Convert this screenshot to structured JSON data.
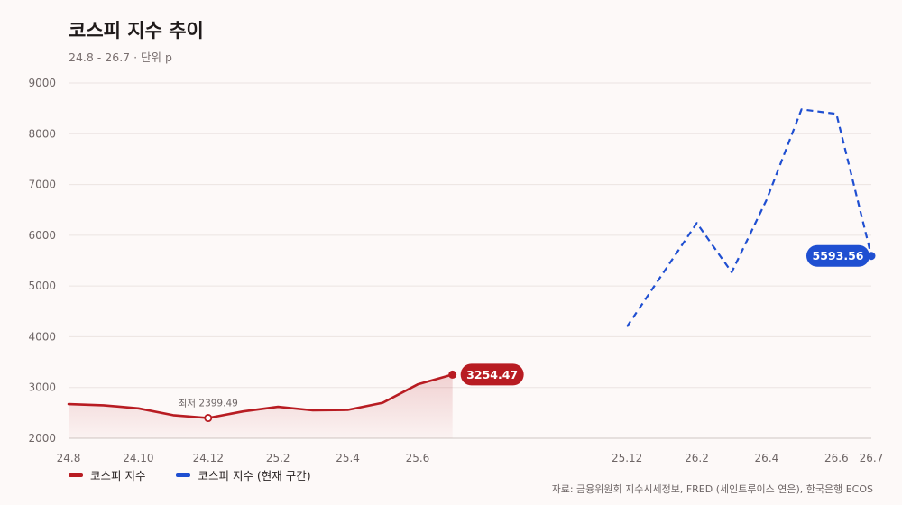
{
  "title": "코스피 지수 추이",
  "subtitle": "24.8 - 26.7 · 단위 p",
  "source": "자료: 금융위원회 지수시세정보, FRED (세인트루이스 연은), 한국은행 ECOS",
  "colors": {
    "series1": "#b81c22",
    "series2": "#1f4fd1",
    "grid": "#ebe4e2",
    "axis": "#cfc6c4"
  },
  "chart_data": {
    "type": "line",
    "title": "코스피 지수 추이",
    "subtitle": "24.8 - 26.7 · 단위 p",
    "ylim": [
      2000,
      9000
    ],
    "yticks": [
      "2000",
      "3000",
      "4000",
      "5000",
      "6000",
      "7000",
      "8000",
      "9000"
    ],
    "xlim": [
      "24.8",
      "26.7"
    ],
    "xticks": [
      "24.8",
      "24.10",
      "24.12",
      "25.2",
      "25.4",
      "25.6",
      "25.12",
      "26.2",
      "26.4",
      "26.6",
      "26.7"
    ],
    "grid": true,
    "legend_position": "bottom-left",
    "series": [
      {
        "name": "코스피 지수",
        "style": "solid-area",
        "points": [
          {
            "x": "24.8",
            "y": 2674
          },
          {
            "x": "24.9",
            "y": 2650
          },
          {
            "x": "24.10",
            "y": 2590
          },
          {
            "x": "24.11",
            "y": 2455
          },
          {
            "x": "24.12",
            "y": 2399.49
          },
          {
            "x": "25.1",
            "y": 2530
          },
          {
            "x": "25.2",
            "y": 2620
          },
          {
            "x": "25.3",
            "y": 2550
          },
          {
            "x": "25.4",
            "y": 2560
          },
          {
            "x": "25.5",
            "y": 2700
          },
          {
            "x": "25.6",
            "y": 3060
          },
          {
            "x": "25.7",
            "y": 3254.47
          }
        ]
      },
      {
        "name": "코스피 지수 (현재 구간)",
        "style": "dashed",
        "points": [
          {
            "x": "25.12",
            "y": 4200
          },
          {
            "x": "26.1",
            "y": 5220
          },
          {
            "x": "26.2",
            "y": 6240
          },
          {
            "x": "26.3",
            "y": 5270
          },
          {
            "x": "26.4",
            "y": 6700
          },
          {
            "x": "26.5",
            "y": 8480
          },
          {
            "x": "26.6",
            "y": 8390
          },
          {
            "x": "26.7",
            "y": 5593.56
          }
        ]
      }
    ],
    "annotations": {
      "min_label": "최저 2399.49",
      "series1_last": "3254.47",
      "series2_last": "5593.56"
    }
  }
}
